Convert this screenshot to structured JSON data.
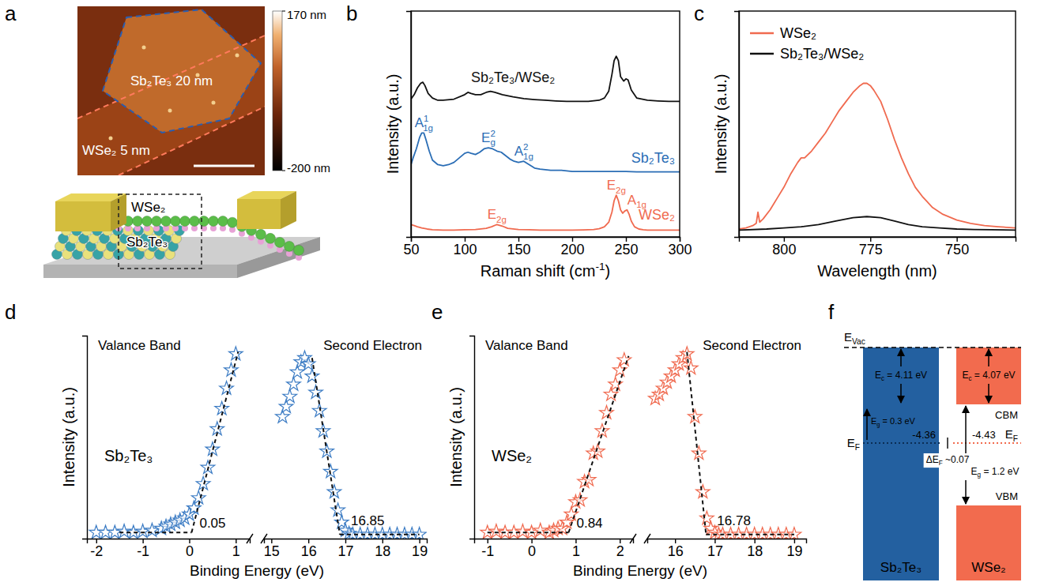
{
  "panel_labels": [
    "a",
    "b",
    "c",
    "d",
    "e",
    "f"
  ],
  "afm": {
    "labels": [
      "Sb₂Te₃ 20 nm",
      "WSe₂ 5 nm"
    ],
    "colorbar": {
      "range": [
        -200,
        170
      ],
      "ticks": [
        {
          "value": 170,
          "label": "170 nm"
        },
        {
          "value": -200,
          "label": "-200 nm"
        }
      ]
    }
  },
  "schematic": {
    "labels": [
      "WSe₂",
      "Sb₂Te₃"
    ]
  },
  "chart_data": [
    {
      "type": "line",
      "x_label": {
        "text": "Raman shift (cm",
        "sup": "-1",
        "after": ")"
      },
      "y_label": "Intensity (a.u.)",
      "xlim": [
        50,
        300
      ],
      "xticks": [
        50,
        100,
        150,
        200,
        250,
        300
      ],
      "ylim": [
        0,
        10
      ],
      "yticks": [],
      "tick_labels": "x",
      "series": [
        {
          "name": "Sb₂Te₃/WSe₂",
          "color": "#111111",
          "x": [
            50,
            53,
            56,
            59,
            61,
            63,
            66,
            70,
            75,
            80,
            90,
            100,
            103,
            106,
            110,
            115,
            120,
            124,
            128,
            135,
            145,
            155,
            165,
            175,
            185,
            195,
            205,
            215,
            225,
            230,
            234,
            237,
            239,
            241,
            243,
            245,
            248,
            250,
            252,
            255,
            260,
            270,
            280,
            290,
            300
          ],
          "values": [
            6.1,
            6.3,
            6.6,
            6.8,
            6.85,
            6.7,
            6.35,
            6.15,
            6.05,
            6.05,
            6.1,
            6.3,
            6.4,
            6.35,
            6.3,
            6.3,
            6.4,
            6.45,
            6.4,
            6.3,
            6.2,
            6.12,
            6.08,
            6.05,
            6.02,
            6.0,
            6.0,
            6.0,
            6.05,
            6.15,
            6.45,
            7.2,
            7.8,
            8.0,
            7.8,
            7.1,
            6.9,
            7.0,
            6.95,
            6.5,
            6.15,
            6.05,
            6.02,
            6.0,
            6.0
          ]
        },
        {
          "name": "Sb₂Te₃",
          "color": "#2a6db5",
          "x": [
            50,
            52,
            55,
            58,
            60,
            62,
            64,
            67,
            70,
            75,
            80,
            85,
            90,
            95,
            100,
            103,
            106,
            110,
            114,
            118,
            122,
            126,
            130,
            134,
            138,
            142,
            146,
            150,
            155,
            160,
            165,
            170,
            180,
            190,
            200,
            210,
            220,
            230,
            240,
            250,
            260,
            270,
            280,
            290,
            300
          ],
          "values": [
            3.2,
            3.5,
            3.9,
            4.4,
            4.6,
            4.6,
            4.3,
            3.8,
            3.4,
            3.2,
            3.15,
            3.2,
            3.3,
            3.5,
            3.7,
            3.75,
            3.7,
            3.65,
            3.75,
            3.9,
            3.95,
            3.9,
            3.8,
            3.75,
            3.6,
            3.45,
            3.35,
            3.3,
            3.35,
            3.2,
            3.05,
            3.0,
            2.95,
            2.95,
            2.9,
            2.9,
            2.9,
            2.9,
            2.9,
            2.9,
            2.88,
            2.88,
            2.88,
            2.88,
            2.88
          ],
          "peaks": [
            {
              "x": 62,
              "label": {
                "text": "A",
                "sup": "1",
                "sub": "1g"
              }
            },
            {
              "x": 122,
              "label": {
                "text": "E",
                "sup": "2",
                "sub": "g"
              }
            },
            {
              "x": 155,
              "label": {
                "text": "A",
                "sup": "2",
                "sub": "1g"
              }
            }
          ]
        },
        {
          "name": "WSe₂",
          "color": "#f06a4f",
          "x": [
            50,
            53,
            56,
            60,
            65,
            70,
            80,
            90,
            100,
            110,
            120,
            125,
            130,
            135,
            140,
            150,
            160,
            170,
            180,
            190,
            200,
            210,
            220,
            225,
            230,
            234,
            237,
            239,
            241,
            243,
            245,
            247,
            249,
            251,
            253,
            255,
            258,
            262,
            266,
            270,
            280,
            290,
            300
          ],
          "values": [
            0.55,
            0.5,
            0.45,
            0.4,
            0.35,
            0.32,
            0.3,
            0.3,
            0.32,
            0.33,
            0.38,
            0.45,
            0.55,
            0.48,
            0.38,
            0.33,
            0.32,
            0.3,
            0.3,
            0.3,
            0.3,
            0.31,
            0.33,
            0.36,
            0.45,
            0.65,
            1.1,
            1.6,
            1.85,
            1.6,
            1.2,
            1.05,
            1.15,
            1.2,
            1.0,
            0.7,
            0.45,
            0.35,
            0.32,
            0.3,
            0.3,
            0.3,
            0.3
          ],
          "peaks": [
            {
              "x": 130,
              "label": {
                "text": "E",
                "sub": "2g"
              }
            },
            {
              "x": 241,
              "label": {
                "text": "E",
                "sub": "2g"
              }
            },
            {
              "x": 251,
              "label": {
                "text": "A",
                "sub": "1g"
              }
            }
          ]
        }
      ]
    },
    {
      "type": "line",
      "x_label": "Wavelength (nm)",
      "y_label": "Intensity (a.u.)",
      "xlim": [
        813,
        733
      ],
      "xticks": [
        800,
        775,
        750
      ],
      "ylim": [
        0,
        10
      ],
      "yticks": [],
      "tick_labels": "x",
      "legend": "top-left",
      "series": [
        {
          "name": "WSe₂",
          "color": "#f06a4f",
          "x": [
            813,
            811,
            809,
            808,
            807.5,
            807,
            806,
            804,
            802,
            800,
            798,
            796,
            795,
            794,
            792,
            790,
            788,
            786,
            784,
            782,
            780,
            778,
            777,
            776,
            775,
            774,
            772,
            770,
            768,
            766,
            764,
            762,
            760,
            757,
            754,
            750,
            746,
            742,
            738,
            733
          ],
          "values": [
            0.35,
            0.4,
            0.5,
            0.6,
            1.1,
            0.65,
            0.8,
            1.2,
            1.7,
            2.2,
            2.8,
            3.3,
            3.5,
            3.5,
            3.8,
            4.2,
            4.6,
            5.1,
            5.6,
            6.0,
            6.4,
            6.7,
            6.8,
            6.8,
            6.7,
            6.5,
            6.0,
            5.2,
            4.3,
            3.5,
            2.8,
            2.2,
            1.8,
            1.3,
            1.0,
            0.75,
            0.6,
            0.5,
            0.45,
            0.4
          ]
        },
        {
          "name": "Sb₂Te₃/WSe₂",
          "color": "#111111",
          "x": [
            813,
            805,
            800,
            795,
            790,
            785,
            780,
            776,
            772,
            768,
            764,
            760,
            755,
            750,
            745,
            740,
            733
          ],
          "values": [
            0.3,
            0.35,
            0.4,
            0.45,
            0.55,
            0.7,
            0.85,
            0.9,
            0.85,
            0.7,
            0.55,
            0.45,
            0.4,
            0.35,
            0.33,
            0.32,
            0.3
          ]
        }
      ]
    },
    {
      "type": "scatter",
      "title": "Sb₂Te₃",
      "x_label": "Binding Energy (eV)",
      "y_label": "Intensity (a.u.)",
      "ylim": [
        0,
        10
      ],
      "yticks": [],
      "tick_labels": "x",
      "segments": [
        {
          "title": "Valance Band",
          "xlim": [
            -2.2,
            1.3
          ],
          "xticks": [
            -2,
            -1,
            0,
            1
          ],
          "edge": 0.05,
          "series": [
            {
              "type": "scatter",
              "marker": "star",
              "color": "#3c7cc4",
              "x": [
                -2.0,
                -1.8,
                -1.6,
                -1.4,
                -1.2,
                -1.0,
                -0.8,
                -0.6,
                -0.5,
                -0.4,
                -0.3,
                -0.2,
                -0.1,
                0.0,
                0.1,
                0.2,
                0.3,
                0.4,
                0.5,
                0.6,
                0.7,
                0.8,
                0.9,
                1.0
              ],
              "values": [
                0.3,
                0.3,
                0.3,
                0.35,
                0.3,
                0.35,
                0.4,
                0.5,
                0.6,
                0.7,
                0.8,
                0.9,
                1.0,
                1.2,
                1.5,
                2.0,
                2.7,
                3.5,
                4.4,
                5.4,
                6.4,
                7.4,
                8.3,
                9.1
              ]
            },
            {
              "type": "line",
              "line_style": "dashed",
              "color": "#111111",
              "x": [
                -1.5,
                0.05
              ],
              "values": [
                0.3,
                0.3
              ]
            },
            {
              "type": "line",
              "line_style": "dashed",
              "color": "#111111",
              "x": [
                0.05,
                1.05
              ],
              "values": [
                0.3,
                9.2
              ]
            }
          ]
        },
        {
          "title": "Second Electron",
          "xlim": [
            14.8,
            19.2
          ],
          "xticks": [
            15,
            16,
            17,
            18,
            19
          ],
          "edge": 16.85,
          "series": [
            {
              "type": "scatter",
              "marker": "star",
              "color": "#3c7cc4",
              "x": [
                15.3,
                15.4,
                15.5,
                15.6,
                15.7,
                15.8,
                15.9,
                16.0,
                16.1,
                16.2,
                16.3,
                16.4,
                16.5,
                16.6,
                16.7,
                16.8,
                16.9,
                17.0,
                17.1,
                17.2,
                17.4,
                17.6,
                17.8,
                18.0,
                18.2,
                18.4,
                18.6,
                18.8,
                19.0
              ],
              "values": [
                6.0,
                6.5,
                7.0,
                7.6,
                8.2,
                8.7,
                8.9,
                8.6,
                8.0,
                7.2,
                6.3,
                5.3,
                4.3,
                3.3,
                2.3,
                1.4,
                0.8,
                0.4,
                0.25,
                0.2,
                0.2,
                0.2,
                0.2,
                0.2,
                0.2,
                0.2,
                0.2,
                0.2,
                0.2
              ]
            },
            {
              "type": "line",
              "line_style": "dashed",
              "color": "#111111",
              "x": [
                16.1,
                16.85
              ],
              "values": [
                8.9,
                0.2
              ]
            },
            {
              "type": "line",
              "line_style": "dashed",
              "color": "#111111",
              "x": [
                16.85,
                19.0
              ],
              "values": [
                0.2,
                0.2
              ]
            }
          ]
        }
      ]
    },
    {
      "type": "scatter",
      "title": "WSe₂",
      "x_label": "Binding Energy (eV)",
      "y_label": "Intensity (a.u.)",
      "ylim": [
        0,
        10
      ],
      "yticks": [],
      "tick_labels": "x",
      "segments": [
        {
          "title": "Valance Band",
          "xlim": [
            -1.3,
            2.3
          ],
          "xticks": [
            -1,
            0,
            1,
            2
          ],
          "edge": 0.84,
          "series": [
            {
              "type": "scatter",
              "marker": "star",
              "color": "#f06a4f",
              "x": [
                -1.0,
                -0.8,
                -0.6,
                -0.4,
                -0.2,
                0.0,
                0.2,
                0.4,
                0.5,
                0.6,
                0.7,
                0.8,
                0.9,
                1.0,
                1.1,
                1.2,
                1.3,
                1.4,
                1.5,
                1.6,
                1.7,
                1.8,
                1.9,
                2.0,
                2.1
              ],
              "values": [
                0.3,
                0.35,
                0.3,
                0.3,
                0.35,
                0.3,
                0.4,
                0.3,
                0.4,
                0.5,
                0.5,
                0.8,
                1.2,
                1.8,
                1.9,
                2.8,
                2.9,
                4.2,
                4.3,
                5.3,
                6.2,
                7.1,
                7.6,
                8.3,
                8.8
              ]
            },
            {
              "type": "line",
              "line_style": "dashed",
              "color": "#111111",
              "x": [
                -1.0,
                0.84
              ],
              "values": [
                0.3,
                0.3
              ]
            },
            {
              "type": "line",
              "line_style": "dashed",
              "color": "#111111",
              "x": [
                0.84,
                2.2
              ],
              "values": [
                0.3,
                9.0
              ]
            }
          ]
        },
        {
          "title": "Second Electron",
          "xlim": [
            15.3,
            19.3
          ],
          "xticks": [
            16,
            17,
            18,
            19
          ],
          "edge": 16.78,
          "series": [
            {
              "type": "scatter",
              "marker": "star",
              "color": "#f06a4f",
              "x": [
                15.5,
                15.6,
                15.7,
                15.8,
                15.9,
                16.0,
                16.1,
                16.2,
                16.3,
                16.4,
                16.5,
                16.6,
                16.7,
                16.8,
                16.9,
                17.0,
                17.1,
                17.2,
                17.4,
                17.6,
                17.8,
                18.0,
                18.2,
                18.4,
                18.6,
                18.8,
                19.0
              ],
              "values": [
                6.9,
                7.1,
                7.4,
                7.7,
                8.0,
                8.3,
                8.6,
                8.9,
                9.1,
                8.4,
                6.0,
                4.2,
                2.3,
                1.0,
                0.5,
                0.3,
                0.2,
                0.2,
                0.2,
                0.2,
                0.2,
                0.2,
                0.2,
                0.2,
                0.2,
                0.2,
                0.2
              ]
            },
            {
              "type": "line",
              "line_style": "dashed",
              "color": "#111111",
              "x": [
                16.3,
                16.78
              ],
              "values": [
                9.2,
                0.2
              ]
            },
            {
              "type": "line",
              "line_style": "dashed",
              "color": "#111111",
              "x": [
                16.78,
                19.0
              ],
              "values": [
                0.2,
                0.2
              ]
            }
          ]
        }
      ]
    }
  ],
  "band_diagram": {
    "vacuum_label": {
      "text": "E",
      "sub": "Vac"
    },
    "left": {
      "name": "Sb₂Te₃",
      "affinity_label": {
        "text": "E",
        "sub": "c",
        "after": " = 4.11 eV"
      },
      "gap_label": {
        "text": "E",
        "sub": "g",
        "after": " = 0.3 eV"
      },
      "fermi_label": {
        "text": "E",
        "sub": "F"
      },
      "fermi_level": -4.36
    },
    "right": {
      "name": "WSe₂",
      "affinity_label": {
        "text": "E",
        "sub": "c",
        "after": " = 4.07 eV"
      },
      "gap_label": {
        "text": "E",
        "sub": "g",
        "after": " = 1.2 eV"
      },
      "fermi_label": {
        "text": "E",
        "sub": "F"
      },
      "fermi_level": -4.43,
      "cbm_label": "CBM",
      "vbm_label": "VBM"
    },
    "offset_label": {
      "text": "ΔE",
      "sub": "F",
      "after": " ~0.07"
    }
  }
}
